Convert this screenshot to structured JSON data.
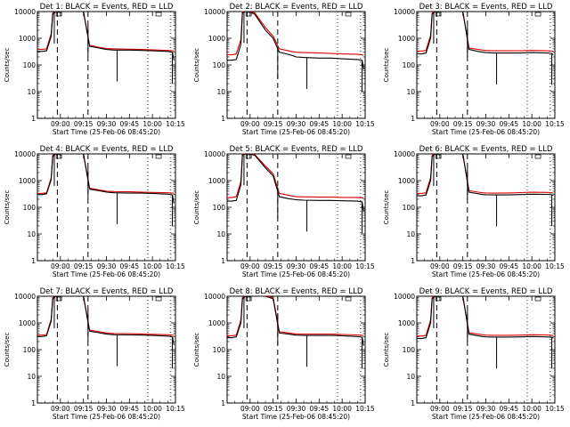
{
  "figure": {
    "rows": 3,
    "cols": 3,
    "series_colors": {
      "events": "#000000",
      "lld": "#dd0000"
    }
  },
  "chart_data": [
    {
      "type": "line",
      "title": "Det 1: BLACK = Events, RED = LLD",
      "xlabel": "Start Time (25-Feb-06 08:45:20)",
      "ylabel": "Counts/sec",
      "x_ticks": [
        "09:00",
        "09:15",
        "09:30",
        "09:45",
        "10:00",
        "10:15"
      ],
      "y_ticks": [
        "1",
        "10",
        "100",
        "1000",
        "10000"
      ],
      "y_scale": "log",
      "ylim": [
        1,
        10000
      ],
      "x_minutes_since_08_45": [
        0,
        3,
        6,
        9,
        10,
        12,
        14,
        18,
        25,
        30,
        34,
        40,
        43,
        45,
        50,
        60,
        68,
        75,
        85,
        88,
        89
      ],
      "series": [
        {
          "name": "BLACK = Events",
          "color": "#000000",
          "values": [
            320,
            320,
            340,
            1200,
            8000,
            11000,
            11000,
            11000,
            11000,
            11000,
            500,
            430,
            400,
            380,
            360,
            360,
            350,
            340,
            320,
            300,
            150
          ]
        },
        {
          "name": "RED = LLD",
          "color": "#dd0000",
          "values": [
            380,
            380,
            400,
            1500,
            9000,
            11000,
            11000,
            11000,
            11000,
            11000,
            550,
            460,
            430,
            410,
            400,
            390,
            380,
            370,
            350,
            340,
            330
          ]
        }
      ],
      "dashed_markers_minutes": [
        13,
        33
      ],
      "dotted_markers_minutes": [
        72,
        87
      ]
    },
    {
      "type": "line",
      "title": "Det 2: BLACK = Events, RED = LLD",
      "xlabel": "Start Time (25-Feb-06 08:45:20)",
      "ylabel": "Counts/sec",
      "x_ticks": [
        "09:00",
        "09:15",
        "09:30",
        "09:45",
        "10:00",
        "10:15"
      ],
      "y_ticks": [
        "1",
        "10",
        "100",
        "1000",
        "10000"
      ],
      "y_scale": "log",
      "ylim": [
        1,
        10000
      ],
      "x_minutes_since_08_45": [
        0,
        3,
        6,
        9,
        10,
        12,
        14,
        18,
        25,
        30,
        34,
        40,
        43,
        45,
        50,
        60,
        68,
        75,
        85,
        88,
        89
      ],
      "series": [
        {
          "name": "BLACK = Events",
          "color": "#000000",
          "values": [
            150,
            150,
            160,
            600,
            9000,
            11000,
            11000,
            8000,
            2000,
            1000,
            300,
            250,
            220,
            200,
            190,
            180,
            180,
            170,
            160,
            150,
            70
          ]
        },
        {
          "name": "RED = LLD",
          "color": "#dd0000",
          "values": [
            240,
            240,
            260,
            900,
            10000,
            11000,
            11000,
            9000,
            2500,
            1200,
            400,
            340,
            310,
            300,
            290,
            280,
            270,
            260,
            250,
            240,
            230
          ]
        }
      ],
      "dashed_markers_minutes": [
        13,
        33
      ],
      "dotted_markers_minutes": [
        72,
        87
      ]
    },
    {
      "type": "line",
      "title": "Det 3: BLACK = Events, RED = LLD",
      "xlabel": "Start Time (25-Feb-06 08:45:20)",
      "ylabel": "Counts/sec",
      "x_ticks": [
        "09:00",
        "09:15",
        "09:30",
        "09:45",
        "10:00",
        "10:15"
      ],
      "y_ticks": [
        "1",
        "10",
        "100",
        "1000",
        "10000"
      ],
      "y_scale": "log",
      "ylim": [
        1,
        10000
      ],
      "x_minutes_since_08_45": [
        0,
        3,
        6,
        9,
        10,
        12,
        14,
        18,
        25,
        30,
        34,
        40,
        43,
        45,
        50,
        60,
        68,
        75,
        85,
        88,
        89
      ],
      "series": [
        {
          "name": "BLACK = Events",
          "color": "#000000",
          "values": [
            260,
            260,
            280,
            1000,
            8000,
            11000,
            11000,
            11000,
            11000,
            11000,
            380,
            320,
            300,
            290,
            280,
            280,
            280,
            290,
            280,
            270,
            240
          ]
        },
        {
          "name": "RED = LLD",
          "color": "#dd0000",
          "values": [
            330,
            330,
            350,
            1300,
            9000,
            11000,
            11000,
            11000,
            11000,
            11000,
            430,
            380,
            360,
            350,
            340,
            340,
            340,
            350,
            340,
            330,
            320
          ]
        }
      ],
      "dashed_markers_minutes": [
        13,
        33
      ],
      "dotted_markers_minutes": [
        72,
        87
      ]
    },
    {
      "type": "line",
      "title": "Det 4: BLACK = Events, RED = LLD",
      "xlabel": "Start Time (25-Feb-06 08:45:20)",
      "ylabel": "Counts/sec",
      "x_ticks": [
        "09:00",
        "09:15",
        "09:30",
        "09:45",
        "10:00",
        "10:15"
      ],
      "y_ticks": [
        "1",
        "10",
        "100",
        "1000",
        "10000"
      ],
      "y_scale": "log",
      "ylim": [
        1,
        10000
      ],
      "x_minutes_since_08_45": [
        0,
        3,
        6,
        9,
        10,
        12,
        14,
        18,
        25,
        30,
        34,
        40,
        43,
        45,
        50,
        60,
        68,
        75,
        85,
        88,
        89
      ],
      "series": [
        {
          "name": "BLACK = Events",
          "color": "#000000",
          "values": [
            300,
            300,
            320,
            1100,
            8000,
            11000,
            11000,
            11000,
            11000,
            11000,
            480,
            420,
            390,
            370,
            350,
            340,
            340,
            330,
            310,
            290,
            140
          ]
        },
        {
          "name": "RED = LLD",
          "color": "#dd0000",
          "values": [
            330,
            330,
            350,
            1300,
            9000,
            11000,
            11000,
            11000,
            11000,
            11000,
            520,
            450,
            420,
            400,
            390,
            380,
            370,
            360,
            350,
            340,
            330
          ]
        }
      ],
      "dashed_markers_minutes": [
        13,
        33
      ],
      "dotted_markers_minutes": [
        72,
        87
      ]
    },
    {
      "type": "line",
      "title": "Det 5: BLACK = Events, RED = LLD",
      "xlabel": "Start Time (25-Feb-06 08:45:20)",
      "ylabel": "Counts/sec",
      "x_ticks": [
        "09:00",
        "09:15",
        "09:30",
        "09:45",
        "10:00",
        "10:15"
      ],
      "y_ticks": [
        "1",
        "10",
        "100",
        "1000",
        "10000"
      ],
      "y_scale": "log",
      "ylim": [
        1,
        10000
      ],
      "x_minutes_since_08_45": [
        0,
        3,
        6,
        9,
        10,
        12,
        14,
        18,
        25,
        30,
        34,
        40,
        43,
        45,
        50,
        60,
        68,
        75,
        85,
        88,
        89
      ],
      "series": [
        {
          "name": "BLACK = Events",
          "color": "#000000",
          "values": [
            170,
            170,
            180,
            700,
            9000,
            11000,
            11000,
            9000,
            3000,
            1500,
            250,
            210,
            200,
            190,
            185,
            180,
            180,
            175,
            170,
            160,
            70
          ]
        },
        {
          "name": "RED = LLD",
          "color": "#dd0000",
          "values": [
            230,
            230,
            250,
            950,
            10000,
            11000,
            11000,
            9500,
            3500,
            1800,
            330,
            280,
            260,
            250,
            245,
            240,
            240,
            235,
            230,
            225,
            220
          ]
        }
      ],
      "dashed_markers_minutes": [
        13,
        33
      ],
      "dotted_markers_minutes": [
        72,
        87
      ]
    },
    {
      "type": "line",
      "title": "Det 6: BLACK = Events, RED = LLD",
      "xlabel": "Start Time (25-Feb-06 08:45:20)",
      "ylabel": "Counts/sec",
      "x_ticks": [
        "09:00",
        "09:15",
        "09:30",
        "09:45",
        "10:00",
        "10:15"
      ],
      "y_ticks": [
        "1",
        "10",
        "100",
        "1000",
        "10000"
      ],
      "y_scale": "log",
      "ylim": [
        1,
        10000
      ],
      "x_minutes_since_08_45": [
        0,
        3,
        6,
        9,
        10,
        12,
        14,
        18,
        25,
        30,
        34,
        40,
        43,
        45,
        50,
        60,
        68,
        75,
        85,
        88,
        89
      ],
      "series": [
        {
          "name": "BLACK = Events",
          "color": "#000000",
          "values": [
            270,
            270,
            290,
            1000,
            8000,
            11000,
            11000,
            11000,
            11000,
            11000,
            370,
            320,
            300,
            295,
            290,
            290,
            300,
            310,
            305,
            295,
            280
          ]
        },
        {
          "name": "RED = LLD",
          "color": "#dd0000",
          "values": [
            330,
            330,
            350,
            1300,
            9000,
            11000,
            11000,
            11000,
            11000,
            11000,
            420,
            370,
            350,
            345,
            340,
            345,
            355,
            365,
            360,
            350,
            340
          ]
        }
      ],
      "dashed_markers_minutes": [
        13,
        33
      ],
      "dotted_markers_minutes": [
        72,
        87
      ]
    },
    {
      "type": "line",
      "title": "Det 7: BLACK = Events, RED = LLD",
      "xlabel": "Start Time (25-Feb-06 08:45:20)",
      "ylabel": "Counts/sec",
      "x_ticks": [
        "09:00",
        "09:15",
        "09:30",
        "09:45",
        "10:00",
        "10:15"
      ],
      "y_ticks": [
        "1",
        "10",
        "100",
        "1000",
        "10000"
      ],
      "y_scale": "log",
      "ylim": [
        1,
        10000
      ],
      "x_minutes_since_08_45": [
        0,
        3,
        6,
        9,
        10,
        12,
        14,
        18,
        25,
        30,
        34,
        40,
        43,
        45,
        50,
        60,
        68,
        75,
        85,
        88,
        89
      ],
      "series": [
        {
          "name": "BLACK = Events",
          "color": "#000000",
          "values": [
            310,
            310,
            330,
            1200,
            8000,
            11000,
            11000,
            11000,
            11000,
            11000,
            490,
            430,
            400,
            380,
            360,
            355,
            350,
            340,
            320,
            300,
            150
          ]
        },
        {
          "name": "RED = LLD",
          "color": "#dd0000",
          "values": [
            350,
            350,
            370,
            1400,
            9000,
            11000,
            11000,
            11000,
            11000,
            11000,
            540,
            470,
            440,
            420,
            400,
            395,
            385,
            375,
            360,
            350,
            340
          ]
        }
      ],
      "dashed_markers_minutes": [
        13,
        33
      ],
      "dotted_markers_minutes": [
        72,
        87
      ]
    },
    {
      "type": "line",
      "title": "Det 8: BLACK = Events, RED = LLD",
      "xlabel": "Start Time (25-Feb-06 08:45:20)",
      "ylabel": "Counts/sec",
      "x_ticks": [
        "09:00",
        "09:15",
        "09:30",
        "09:45",
        "10:00",
        "10:15"
      ],
      "y_ticks": [
        "1",
        "10",
        "100",
        "1000",
        "10000"
      ],
      "y_scale": "log",
      "ylim": [
        1,
        10000
      ],
      "x_minutes_since_08_45": [
        0,
        3,
        6,
        9,
        10,
        12,
        14,
        18,
        25,
        30,
        34,
        40,
        43,
        45,
        50,
        60,
        68,
        75,
        85,
        88,
        89
      ],
      "series": [
        {
          "name": "BLACK = Events",
          "color": "#000000",
          "values": [
            280,
            280,
            300,
            1000,
            8000,
            11000,
            11000,
            11000,
            10000,
            8000,
            420,
            380,
            360,
            350,
            340,
            340,
            340,
            330,
            310,
            290,
            140
          ]
        },
        {
          "name": "RED = LLD",
          "color": "#dd0000",
          "values": [
            330,
            330,
            350,
            1300,
            9000,
            11000,
            11000,
            11000,
            11000,
            9000,
            470,
            420,
            400,
            390,
            380,
            380,
            380,
            370,
            355,
            345,
            335
          ]
        }
      ],
      "dashed_markers_minutes": [
        13,
        33
      ],
      "dotted_markers_minutes": [
        72,
        87
      ]
    },
    {
      "type": "line",
      "title": "Det 9: BLACK = Events, RED = LLD",
      "xlabel": "Start Time (25-Feb-06 08:45:20)",
      "ylabel": "Counts/sec",
      "x_ticks": [
        "09:00",
        "09:15",
        "09:30",
        "09:45",
        "10:00",
        "10:15"
      ],
      "y_ticks": [
        "1",
        "10",
        "100",
        "1000",
        "10000"
      ],
      "y_scale": "log",
      "ylim": [
        1,
        10000
      ],
      "x_minutes_since_08_45": [
        0,
        3,
        6,
        9,
        10,
        12,
        14,
        18,
        25,
        30,
        34,
        40,
        43,
        45,
        50,
        60,
        68,
        75,
        85,
        88,
        89
      ],
      "series": [
        {
          "name": "BLACK = Events",
          "color": "#000000",
          "values": [
            260,
            260,
            280,
            1000,
            8000,
            11000,
            11000,
            11000,
            11000,
            11000,
            380,
            330,
            310,
            300,
            295,
            295,
            300,
            310,
            300,
            290,
            270
          ]
        },
        {
          "name": "RED = LLD",
          "color": "#dd0000",
          "values": [
            320,
            320,
            340,
            1300,
            9000,
            11000,
            11000,
            11000,
            11000,
            11000,
            430,
            380,
            360,
            350,
            345,
            345,
            350,
            360,
            355,
            345,
            335
          ]
        }
      ],
      "dashed_markers_minutes": [
        13,
        33
      ],
      "dotted_markers_minutes": [
        72,
        87
      ]
    }
  ]
}
